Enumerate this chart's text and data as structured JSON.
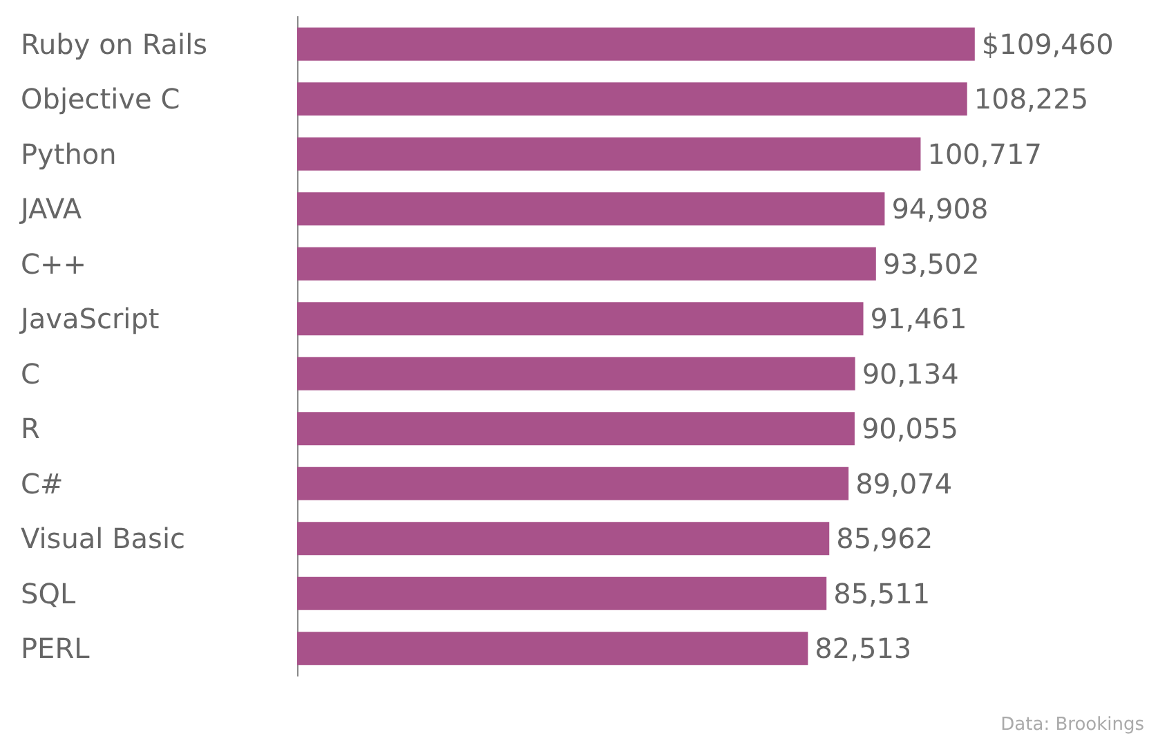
{
  "chart_data": {
    "type": "bar",
    "orientation": "horizontal",
    "categories": [
      "Ruby on Rails",
      "Objective C",
      "Python",
      "JAVA",
      "C++",
      "JavaScript",
      "C",
      "R",
      "C#",
      "Visual Basic",
      "SQL",
      "PERL"
    ],
    "values": [
      109460,
      108225,
      100717,
      94908,
      93502,
      91461,
      90134,
      90055,
      89074,
      85962,
      85511,
      82513
    ],
    "value_labels": [
      "$109,460",
      "108,225",
      "100,717",
      "94,908",
      "93,502",
      "91,461",
      "90,134",
      "90,055",
      "89,074",
      "85,962",
      "85,511",
      "82,513"
    ],
    "color": "#a8528a",
    "tick_labels": "y",
    "annotations": [
      "Data: Brookings"
    ]
  }
}
